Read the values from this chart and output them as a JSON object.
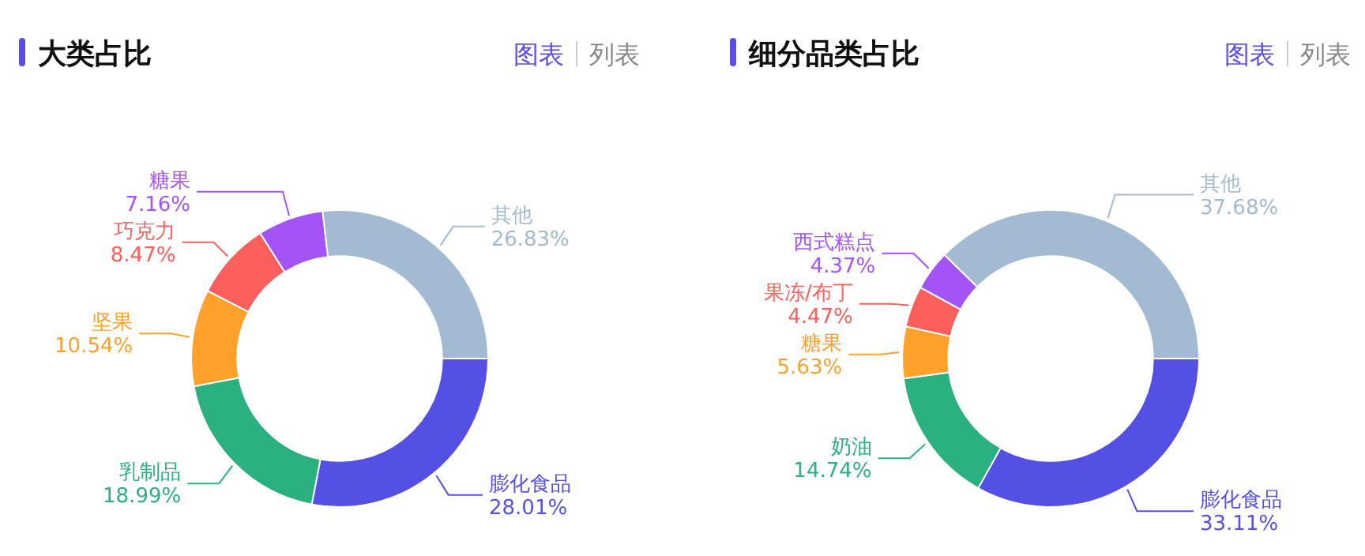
{
  "chart_data": [
    {
      "type": "donut",
      "title": "大类占比",
      "annotations": [
        "图表",
        "列表"
      ],
      "categories": [
        "膨化食品",
        "乳制品",
        "坚果",
        "巧克力",
        "糖果",
        "其他"
      ],
      "values": [
        28.01,
        18.99,
        10.54,
        8.47,
        7.16,
        26.83
      ],
      "value_labels": [
        "28.01%",
        "18.99%",
        "10.54%",
        "8.47%",
        "7.16%",
        "26.83%"
      ],
      "colors": [
        "#5450e4",
        "#2bb07f",
        "#ffa12b",
        "#fd605c",
        "#a453f7",
        "#a2bad2"
      ]
    },
    {
      "type": "donut",
      "title": "细分品类占比",
      "annotations": [
        "图表",
        "列表"
      ],
      "categories": [
        "膨化食品",
        "奶油",
        "糖果",
        "果冻/布丁",
        "西式糕点",
        "其他"
      ],
      "values": [
        33.11,
        14.74,
        5.63,
        4.47,
        4.37,
        37.68
      ],
      "value_labels": [
        "33.11%",
        "14.74%",
        "5.63%",
        "4.47%",
        "4.37%",
        "37.68%"
      ],
      "colors": [
        "#5450e4",
        "#2bb07f",
        "#ffa12b",
        "#fd605c",
        "#a453f7",
        "#a2bad2"
      ]
    }
  ]
}
